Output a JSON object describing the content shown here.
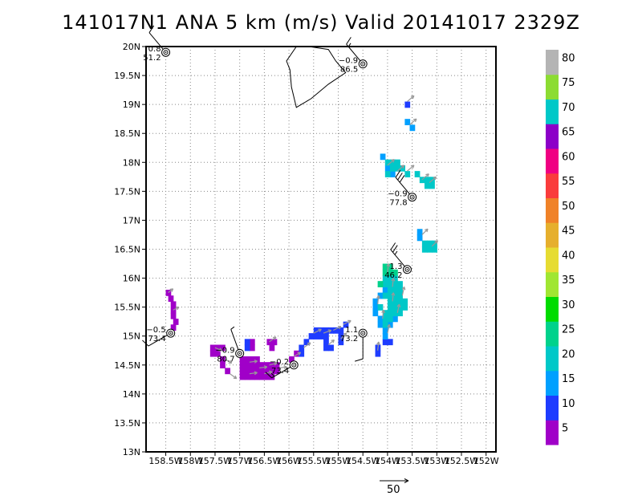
{
  "title": "141017N1 ANA 5 km (m/s) Valid 20141017 2329Z",
  "map": {
    "lon_range": [
      -158.9,
      -151.8
    ],
    "lat_range": [
      13,
      20
    ],
    "lat_ticks": [
      "13N",
      "13.5N",
      "14N",
      "14.5N",
      "15N",
      "15.5N",
      "16N",
      "16.5N",
      "17N",
      "17.5N",
      "18N",
      "18.5N",
      "19N",
      "19.5N",
      "20N"
    ],
    "lon_ticks": [
      "158.5W",
      "158W",
      "157.5W",
      "157W",
      "156.5W",
      "156W",
      "155.5W",
      "155W",
      "154.5W",
      "154W",
      "153.5W",
      "153W",
      "152.5W",
      "152W"
    ],
    "grid": true,
    "grid_style": "dotted"
  },
  "colorbar": {
    "levels": [
      0,
      5,
      10,
      15,
      20,
      25,
      30,
      35,
      40,
      45,
      50,
      55,
      60,
      65,
      70,
      75,
      80,
      85
    ],
    "labels": [
      "5",
      "10",
      "15",
      "20",
      "25",
      "30",
      "35",
      "40",
      "45",
      "50",
      "55",
      "60",
      "65",
      "70",
      "75",
      "80"
    ],
    "colors": [
      "#a000c8",
      "#1e3cff",
      "#00a0ff",
      "#00c8c8",
      "#00d28c",
      "#00dc00",
      "#a0e632",
      "#e6dc32",
      "#e6af2d",
      "#f08228",
      "#fa3c3c",
      "#f00082",
      "#8c00c8",
      "#00c8c8",
      "#8cdc32",
      "#b4b4b4"
    ]
  },
  "scale_vector": {
    "label": "50"
  },
  "stations": [
    {
      "lon": -158.5,
      "lat": 19.9,
      "top": "0.8",
      "bottom": "51.2",
      "barb_dir": 320,
      "barb_speed": 10
    },
    {
      "lon": -154.5,
      "lat": 19.7,
      "top": "−0.9",
      "bottom": "86.5",
      "barb_dir": 320,
      "barb_speed": 15
    },
    {
      "lon": -153.5,
      "lat": 17.4,
      "top": "−0.9",
      "bottom": "77.8",
      "barb_dir": 320,
      "barb_speed": 30
    },
    {
      "lon": -153.6,
      "lat": 16.15,
      "top": "1.3",
      "bottom": "46.2",
      "barb_dir": 320,
      "barb_speed": 25
    },
    {
      "lon": -158.4,
      "lat": 15.05,
      "top": "−0.5",
      "bottom": "73.4",
      "barb_dir": 240,
      "barb_speed": 10
    },
    {
      "lon": -154.5,
      "lat": 15.05,
      "top": "1.1",
      "bottom": "73.2",
      "barb_dir": 180,
      "barb_speed": 10
    },
    {
      "lon": -157.0,
      "lat": 14.7,
      "top": "−0.9",
      "bottom": "80.7",
      "barb_dir": 340,
      "barb_speed": 5
    },
    {
      "lon": -155.9,
      "lat": 14.5,
      "top": "−0.2",
      "bottom": "73.4",
      "barb_dir": 240,
      "barb_speed": 15
    }
  ],
  "coastline_hawaii": [
    [
      -155.87,
      20.27
    ],
    [
      -155.6,
      20.1
    ],
    [
      -155.2,
      19.95
    ],
    [
      -155.05,
      19.75
    ],
    [
      -154.85,
      19.55
    ],
    [
      -155.2,
      19.35
    ],
    [
      -155.55,
      19.1
    ],
    [
      -155.85,
      18.95
    ],
    [
      -155.95,
      19.3
    ],
    [
      -155.98,
      19.6
    ],
    [
      -156.05,
      19.75
    ],
    [
      -155.85,
      20.1
    ],
    [
      -155.87,
      20.27
    ]
  ],
  "colored_cells": [
    {
      "lon": -158.45,
      "lat": 15.75,
      "v": 3
    },
    {
      "lon": -158.4,
      "lat": 15.65,
      "v": 3
    },
    {
      "lon": -158.35,
      "lat": 15.55,
      "v": 3
    },
    {
      "lon": -158.35,
      "lat": 15.45,
      "v": 3
    },
    {
      "lon": -158.35,
      "lat": 15.35,
      "v": 3
    },
    {
      "lon": -158.3,
      "lat": 15.25,
      "v": 3
    },
    {
      "lon": -158.35,
      "lat": 15.15,
      "v": 3
    },
    {
      "lon": -157.55,
      "lat": 14.8,
      "v": 3
    },
    {
      "lon": -157.45,
      "lat": 14.8,
      "v": 3
    },
    {
      "lon": -157.35,
      "lat": 14.8,
      "v": 3
    },
    {
      "lon": -157.55,
      "lat": 14.7,
      "v": 3
    },
    {
      "lon": -157.45,
      "lat": 14.7,
      "v": 3
    },
    {
      "lon": -157.35,
      "lat": 14.6,
      "v": 3
    },
    {
      "lon": -157.35,
      "lat": 14.5,
      "v": 3
    },
    {
      "lon": -157.25,
      "lat": 14.4,
      "v": 3
    },
    {
      "lon": -156.95,
      "lat": 14.6,
      "v": 3
    },
    {
      "lon": -156.85,
      "lat": 14.6,
      "v": 3
    },
    {
      "lon": -156.75,
      "lat": 14.6,
      "v": 3
    },
    {
      "lon": -156.65,
      "lat": 14.6,
      "v": 3
    },
    {
      "lon": -156.95,
      "lat": 14.5,
      "v": 3
    },
    {
      "lon": -156.85,
      "lat": 14.5,
      "v": 3
    },
    {
      "lon": -156.75,
      "lat": 14.5,
      "v": 3
    },
    {
      "lon": -156.65,
      "lat": 14.5,
      "v": 3
    },
    {
      "lon": -156.55,
      "lat": 14.5,
      "v": 3
    },
    {
      "lon": -156.45,
      "lat": 14.5,
      "v": 3
    },
    {
      "lon": -156.35,
      "lat": 14.5,
      "v": 3
    },
    {
      "lon": -156.25,
      "lat": 14.5,
      "v": 3
    },
    {
      "lon": -156.95,
      "lat": 14.4,
      "v": 3
    },
    {
      "lon": -156.85,
      "lat": 14.4,
      "v": 3
    },
    {
      "lon": -156.75,
      "lat": 14.4,
      "v": 3
    },
    {
      "lon": -156.65,
      "lat": 14.4,
      "v": 3
    },
    {
      "lon": -156.55,
      "lat": 14.4,
      "v": 3
    },
    {
      "lon": -156.45,
      "lat": 14.4,
      "v": 3
    },
    {
      "lon": -156.35,
      "lat": 14.4,
      "v": 3
    },
    {
      "lon": -156.25,
      "lat": 14.4,
      "v": 3
    },
    {
      "lon": -156.95,
      "lat": 14.3,
      "v": 3
    },
    {
      "lon": -156.85,
      "lat": 14.3,
      "v": 3
    },
    {
      "lon": -156.75,
      "lat": 14.3,
      "v": 3
    },
    {
      "lon": -156.65,
      "lat": 14.3,
      "v": 3
    },
    {
      "lon": -156.55,
      "lat": 14.3,
      "v": 3
    },
    {
      "lon": -156.45,
      "lat": 14.3,
      "v": 3
    },
    {
      "lon": -156.35,
      "lat": 14.3,
      "v": 3
    },
    {
      "lon": -156.75,
      "lat": 14.9,
      "v": 3
    },
    {
      "lon": -156.75,
      "lat": 14.8,
      "v": 3
    },
    {
      "lon": -156.4,
      "lat": 14.9,
      "v": 3
    },
    {
      "lon": -156.3,
      "lat": 14.9,
      "v": 3
    },
    {
      "lon": -156.35,
      "lat": 14.8,
      "v": 3
    },
    {
      "lon": -155.95,
      "lat": 14.6,
      "v": 3
    },
    {
      "lon": -155.85,
      "lat": 14.7,
      "v": 3
    },
    {
      "lon": -156.85,
      "lat": 14.8,
      "v": 8
    },
    {
      "lon": -156.85,
      "lat": 14.9,
      "v": 8
    },
    {
      "lon": -155.75,
      "lat": 14.7,
      "v": 8
    },
    {
      "lon": -155.75,
      "lat": 14.8,
      "v": 8
    },
    {
      "lon": -155.65,
      "lat": 14.9,
      "v": 8
    },
    {
      "lon": -155.55,
      "lat": 15.0,
      "v": 8
    },
    {
      "lon": -155.45,
      "lat": 15.0,
      "v": 8
    },
    {
      "lon": -155.35,
      "lat": 15.0,
      "v": 8
    },
    {
      "lon": -155.25,
      "lat": 15.0,
      "v": 8
    },
    {
      "lon": -155.15,
      "lat": 15.1,
      "v": 8
    },
    {
      "lon": -155.05,
      "lat": 15.1,
      "v": 8
    },
    {
      "lon": -154.95,
      "lat": 15.1,
      "v": 8
    },
    {
      "lon": -154.85,
      "lat": 15.2,
      "v": 8
    },
    {
      "lon": -155.25,
      "lat": 14.9,
      "v": 8
    },
    {
      "lon": -155.25,
      "lat": 14.8,
      "v": 8
    },
    {
      "lon": -155.15,
      "lat": 14.8,
      "v": 8
    },
    {
      "lon": -154.95,
      "lat": 15.0,
      "v": 8
    },
    {
      "lon": -154.95,
      "lat": 14.9,
      "v": 8
    },
    {
      "lon": -155.45,
      "lat": 15.1,
      "v": 8
    },
    {
      "lon": -155.35,
      "lat": 15.1,
      "v": 8
    },
    {
      "lon": -155.25,
      "lat": 15.1,
      "v": 8
    },
    {
      "lon": -154.2,
      "lat": 14.7,
      "v": 8
    },
    {
      "lon": -154.2,
      "lat": 14.8,
      "v": 8
    },
    {
      "lon": -154.05,
      "lat": 14.9,
      "v": 8
    },
    {
      "lon": -153.95,
      "lat": 14.9,
      "v": 8
    },
    {
      "lon": -153.6,
      "lat": 19.0,
      "v": 8
    },
    {
      "lon": -153.5,
      "lat": 18.6,
      "v": 13
    },
    {
      "lon": -153.6,
      "lat": 18.7,
      "v": 13
    },
    {
      "lon": -154.25,
      "lat": 15.6,
      "v": 13
    },
    {
      "lon": -154.25,
      "lat": 15.5,
      "v": 13
    },
    {
      "lon": -154.25,
      "lat": 15.4,
      "v": 13
    },
    {
      "lon": -154.15,
      "lat": 15.3,
      "v": 13
    },
    {
      "lon": -154.15,
      "lat": 15.2,
      "v": 13
    },
    {
      "lon": -154.05,
      "lat": 15.1,
      "v": 13
    },
    {
      "lon": -154.15,
      "lat": 15.7,
      "v": 13
    },
    {
      "lon": -154.05,
      "lat": 15.8,
      "v": 13
    },
    {
      "lon": -153.95,
      "lat": 15.2,
      "v": 13
    },
    {
      "lon": -153.85,
      "lat": 15.3,
      "v": 13
    },
    {
      "lon": -154.05,
      "lat": 15.0,
      "v": 13
    },
    {
      "lon": -153.35,
      "lat": 16.8,
      "v": 13
    },
    {
      "lon": -153.35,
      "lat": 16.7,
      "v": 13
    },
    {
      "lon": -154.1,
      "lat": 18.1,
      "v": 13
    },
    {
      "lon": -154.0,
      "lat": 17.9,
      "v": 13
    },
    {
      "lon": -153.9,
      "lat": 17.8,
      "v": 13
    },
    {
      "lon": -154.05,
      "lat": 16.0,
      "v": 18
    },
    {
      "lon": -153.95,
      "lat": 16.0,
      "v": 18
    },
    {
      "lon": -154.05,
      "lat": 15.9,
      "v": 18
    },
    {
      "lon": -153.95,
      "lat": 15.9,
      "v": 18
    },
    {
      "lon": -153.85,
      "lat": 15.9,
      "v": 18
    },
    {
      "lon": -154.05,
      "lat": 15.7,
      "v": 18
    },
    {
      "lon": -153.95,
      "lat": 15.8,
      "v": 18
    },
    {
      "lon": -153.85,
      "lat": 15.8,
      "v": 18
    },
    {
      "lon": -153.75,
      "lat": 15.8,
      "v": 18
    },
    {
      "lon": -153.95,
      "lat": 15.7,
      "v": 18
    },
    {
      "lon": -153.85,
      "lat": 15.7,
      "v": 18
    },
    {
      "lon": -153.75,
      "lat": 15.7,
      "v": 18
    },
    {
      "lon": -153.95,
      "lat": 15.6,
      "v": 18
    },
    {
      "lon": -153.85,
      "lat": 15.6,
      "v": 18
    },
    {
      "lon": -153.75,
      "lat": 15.6,
      "v": 18
    },
    {
      "lon": -153.65,
      "lat": 15.6,
      "v": 18
    },
    {
      "lon": -153.95,
      "lat": 15.5,
      "v": 18
    },
    {
      "lon": -153.85,
      "lat": 15.5,
      "v": 18
    },
    {
      "lon": -153.75,
      "lat": 15.5,
      "v": 18
    },
    {
      "lon": -153.65,
      "lat": 15.5,
      "v": 18
    },
    {
      "lon": -153.95,
      "lat": 15.4,
      "v": 18
    },
    {
      "lon": -153.85,
      "lat": 15.4,
      "v": 18
    },
    {
      "lon": -153.75,
      "lat": 15.4,
      "v": 18
    },
    {
      "lon": -154.05,
      "lat": 15.4,
      "v": 18
    },
    {
      "lon": -154.15,
      "lat": 15.5,
      "v": 18
    },
    {
      "lon": -154.05,
      "lat": 15.3,
      "v": 18
    },
    {
      "lon": -153.95,
      "lat": 15.3,
      "v": 18
    },
    {
      "lon": -154.05,
      "lat": 15.2,
      "v": 18
    },
    {
      "lon": -153.75,
      "lat": 15.9,
      "v": 18
    },
    {
      "lon": -153.85,
      "lat": 16.0,
      "v": 18
    },
    {
      "lon": -154.05,
      "lat": 16.1,
      "v": 23
    },
    {
      "lon": -153.95,
      "lat": 16.1,
      "v": 23
    },
    {
      "lon": -154.05,
      "lat": 16.2,
      "v": 23
    },
    {
      "lon": -153.95,
      "lat": 16.2,
      "v": 23
    },
    {
      "lon": -153.85,
      "lat": 16.1,
      "v": 23
    },
    {
      "lon": -154.15,
      "lat": 15.9,
      "v": 23
    },
    {
      "lon": -153.25,
      "lat": 16.6,
      "v": 18
    },
    {
      "lon": -153.15,
      "lat": 16.6,
      "v": 18
    },
    {
      "lon": -153.05,
      "lat": 16.6,
      "v": 18
    },
    {
      "lon": -153.25,
      "lat": 16.5,
      "v": 18
    },
    {
      "lon": -153.15,
      "lat": 16.5,
      "v": 18
    },
    {
      "lon": -153.05,
      "lat": 16.5,
      "v": 18
    },
    {
      "lon": -154.0,
      "lat": 18.0,
      "v": 18
    },
    {
      "lon": -153.9,
      "lat": 17.9,
      "v": 18
    },
    {
      "lon": -153.8,
      "lat": 17.9,
      "v": 18
    },
    {
      "lon": -153.7,
      "lat": 17.9,
      "v": 18
    },
    {
      "lon": -153.9,
      "lat": 18.0,
      "v": 18
    },
    {
      "lon": -153.8,
      "lat": 18.0,
      "v": 18
    },
    {
      "lon": -154.0,
      "lat": 17.8,
      "v": 18
    },
    {
      "lon": -153.6,
      "lat": 17.8,
      "v": 18
    },
    {
      "lon": -153.4,
      "lat": 17.8,
      "v": 18
    },
    {
      "lon": -153.3,
      "lat": 17.7,
      "v": 18
    },
    {
      "lon": -153.2,
      "lat": 17.7,
      "v": 18
    },
    {
      "lon": -153.2,
      "lat": 17.6,
      "v": 18
    },
    {
      "lon": -153.1,
      "lat": 17.6,
      "v": 18
    },
    {
      "lon": -153.1,
      "lat": 17.7,
      "v": 18
    }
  ],
  "vectors": [
    {
      "lon": -158.45,
      "lat": 15.75,
      "u": 0.5,
      "v": 0.4
    },
    {
      "lon": -158.35,
      "lat": 15.45,
      "u": 0.6,
      "v": 0.3
    },
    {
      "lon": -157.5,
      "lat": 14.8,
      "u": 0.7,
      "v": -0.3
    },
    {
      "lon": -157.3,
      "lat": 14.6,
      "u": 0.7,
      "v": -0.4
    },
    {
      "lon": -157.2,
      "lat": 14.35,
      "u": 0.7,
      "v": -0.5
    },
    {
      "lon": -156.8,
      "lat": 14.55,
      "u": 0.8,
      "v": 0.1
    },
    {
      "lon": -156.6,
      "lat": 14.45,
      "u": 0.8,
      "v": 0.1
    },
    {
      "lon": -156.4,
      "lat": 14.5,
      "u": 0.8,
      "v": 0.2
    },
    {
      "lon": -156.2,
      "lat": 14.45,
      "u": 0.8,
      "v": 0.1
    },
    {
      "lon": -156.8,
      "lat": 14.35,
      "u": 0.8,
      "v": 0.1
    },
    {
      "lon": -156.5,
      "lat": 14.35,
      "u": 0.8,
      "v": 0.2
    },
    {
      "lon": -156.4,
      "lat": 14.9,
      "u": 0.7,
      "v": 0.5
    },
    {
      "lon": -155.9,
      "lat": 14.65,
      "u": 0.7,
      "v": 0.4
    },
    {
      "lon": -155.7,
      "lat": 14.8,
      "u": 0.7,
      "v": 0.5
    },
    {
      "lon": -155.5,
      "lat": 15.05,
      "u": 0.8,
      "v": 0.4
    },
    {
      "lon": -155.3,
      "lat": 15.05,
      "u": 0.8,
      "v": 0.3
    },
    {
      "lon": -155.1,
      "lat": 15.1,
      "u": 0.8,
      "v": 0.4
    },
    {
      "lon": -154.9,
      "lat": 15.2,
      "u": 0.8,
      "v": 0.4
    },
    {
      "lon": -155.2,
      "lat": 14.85,
      "u": 0.6,
      "v": 0.5
    },
    {
      "lon": -154.95,
      "lat": 14.95,
      "u": 0.6,
      "v": 0.6
    },
    {
      "lon": -154.2,
      "lat": 15.55,
      "u": 0.1,
      "v": 0.9
    },
    {
      "lon": -154.1,
      "lat": 15.3,
      "u": 0.1,
      "v": 0.9
    },
    {
      "lon": -154.0,
      "lat": 15.05,
      "u": 0.2,
      "v": 0.9
    },
    {
      "lon": -153.9,
      "lat": 15.6,
      "u": 0.1,
      "v": 0.9
    },
    {
      "lon": -153.8,
      "lat": 15.4,
      "u": 0.2,
      "v": 0.9
    },
    {
      "lon": -153.9,
      "lat": 15.85,
      "u": 0.1,
      "v": 0.9
    },
    {
      "lon": -154.0,
      "lat": 16.1,
      "u": 0.1,
      "v": 0.9
    },
    {
      "lon": -153.7,
      "lat": 15.7,
      "u": 0.2,
      "v": 0.9
    },
    {
      "lon": -154.2,
      "lat": 14.75,
      "u": 0.1,
      "v": 0.9
    },
    {
      "lon": -153.3,
      "lat": 16.75,
      "u": 0.6,
      "v": 0.6
    },
    {
      "lon": -153.1,
      "lat": 16.55,
      "u": 0.6,
      "v": 0.6
    },
    {
      "lon": -154.0,
      "lat": 17.95,
      "u": 0.7,
      "v": 0.6
    },
    {
      "lon": -153.8,
      "lat": 17.85,
      "u": 0.7,
      "v": 0.6
    },
    {
      "lon": -153.6,
      "lat": 17.85,
      "u": 0.7,
      "v": 0.6
    },
    {
      "lon": -153.3,
      "lat": 17.7,
      "u": 0.7,
      "v": 0.6
    },
    {
      "lon": -153.15,
      "lat": 17.65,
      "u": 0.7,
      "v": 0.6
    },
    {
      "lon": -153.55,
      "lat": 18.65,
      "u": 0.7,
      "v": 0.6
    },
    {
      "lon": -153.6,
      "lat": 19.05,
      "u": 0.7,
      "v": 0.6
    }
  ]
}
